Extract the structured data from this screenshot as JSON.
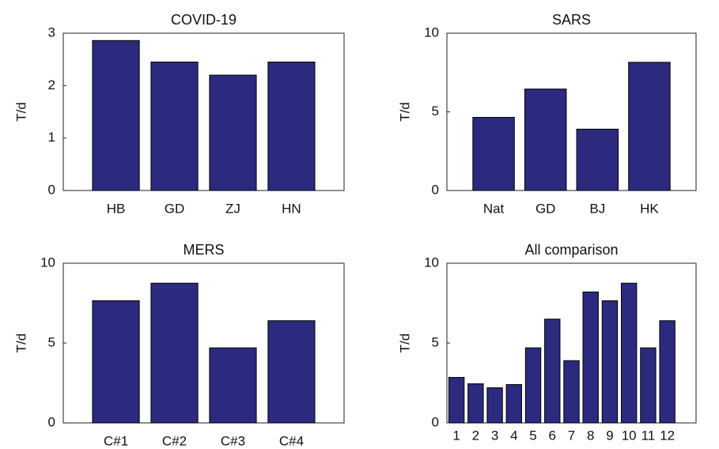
{
  "chart_data": [
    {
      "type": "bar",
      "title": "COVID-19",
      "y_label": "T/d",
      "color": "#2c2a7e",
      "categories": [
        "HB",
        "GD",
        "ZJ",
        "HN"
      ],
      "values": [
        2.86,
        2.45,
        2.2,
        2.45
      ],
      "ylim": [
        0,
        3
      ],
      "yticks": [
        0,
        1,
        2,
        3
      ]
    },
    {
      "type": "bar",
      "title": "SARS",
      "y_label": "T/d",
      "color": "#2c2a7e",
      "categories": [
        "Nat",
        "GD",
        "BJ",
        "HK"
      ],
      "values": [
        4.65,
        6.45,
        3.9,
        8.15
      ],
      "ylim": [
        0,
        10
      ],
      "yticks": [
        0,
        5,
        10
      ]
    },
    {
      "type": "bar",
      "title": "MERS",
      "y_label": "T/d",
      "color": "#2c2a7e",
      "categories": [
        "C#1",
        "C#2",
        "C#3",
        "C#4"
      ],
      "values": [
        7.65,
        8.75,
        4.7,
        6.4
      ],
      "ylim": [
        0,
        10
      ],
      "yticks": [
        0,
        5,
        10
      ]
    },
    {
      "type": "bar",
      "title": "All comparison",
      "y_label": "T/d",
      "color": "#2c2a7e",
      "x": [
        1,
        2,
        3,
        4,
        5,
        6,
        7,
        8,
        9,
        10,
        11,
        12
      ],
      "values": [
        2.85,
        2.45,
        2.2,
        2.4,
        4.7,
        6.5,
        3.9,
        8.2,
        7.65,
        8.75,
        4.7,
        6.4
      ],
      "xlim": [
        0.5,
        13.5
      ],
      "xticks": [
        1,
        2,
        3,
        4,
        5,
        6,
        7,
        8,
        9,
        10,
        11,
        12
      ],
      "ylim": [
        0,
        10
      ],
      "yticks": [
        0,
        5,
        10
      ]
    }
  ]
}
